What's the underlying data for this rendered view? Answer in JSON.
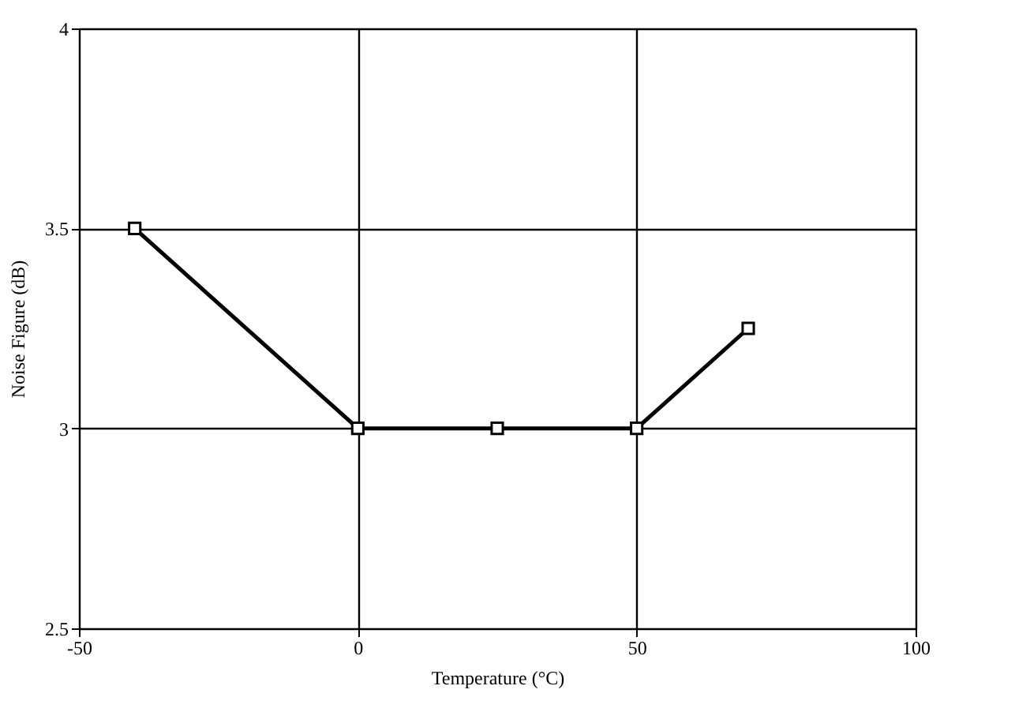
{
  "chart_data": {
    "type": "line",
    "xlabel": "Temperature (°C)",
    "ylabel": "Noise Figure  (dB)",
    "x": [
      -40,
      0,
      25,
      50,
      70
    ],
    "series": [
      {
        "color": "#000000",
        "values": [
          3.5,
          3,
          3,
          3,
          3.25
        ]
      }
    ],
    "xlim": [
      -50,
      100
    ],
    "xticks": [
      -50,
      0,
      50,
      100
    ],
    "ylim": [
      2.5,
      4
    ],
    "yticks": [
      2.5,
      3,
      3.5,
      4
    ],
    "grid": true,
    "marker": "square",
    "line_style": "solid"
  }
}
